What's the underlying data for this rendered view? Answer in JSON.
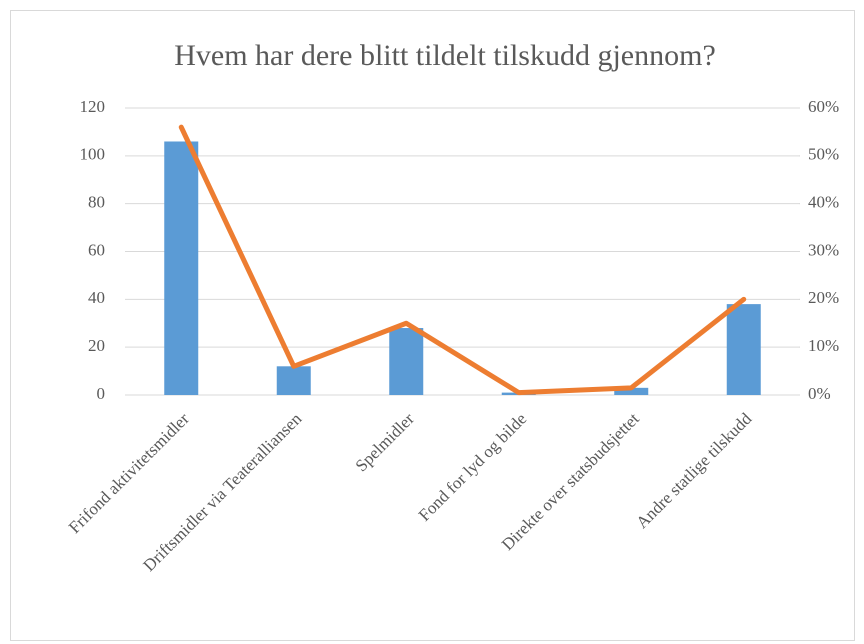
{
  "chart_data": {
    "type": "bar_line",
    "title": "Hvem har dere blitt tildelt tilskudd gjennom?",
    "categories": [
      "Frifond aktivitetsmidler",
      "Driftsmidler via Teateralliansen",
      "Spelmidler",
      "Fond for lyd og bilde",
      "Direkte over statsbudsjettet",
      "Andre statlige tilskudd"
    ],
    "series": [
      {
        "type": "bar",
        "color": "#5b9bd5",
        "values": [
          106,
          12,
          28,
          1,
          3,
          38
        ]
      },
      {
        "type": "line",
        "axis": "y2",
        "color": "#ed7d31",
        "values": [
          56,
          6,
          15,
          0.5,
          1.5,
          20
        ]
      }
    ],
    "ylim": [
      0,
      120
    ],
    "yticks": [
      0,
      20,
      40,
      60,
      80,
      100,
      120
    ],
    "y2lim": [
      0,
      60
    ],
    "y2ticks": [
      {
        "value": 0,
        "label": "0%"
      },
      {
        "value": 10,
        "label": "10%"
      },
      {
        "value": 20,
        "label": "20%"
      },
      {
        "value": 30,
        "label": "30%"
      },
      {
        "value": 40,
        "label": "40%"
      },
      {
        "value": 50,
        "label": "50%"
      },
      {
        "value": 60,
        "label": "60%"
      }
    ],
    "grid": true
  }
}
